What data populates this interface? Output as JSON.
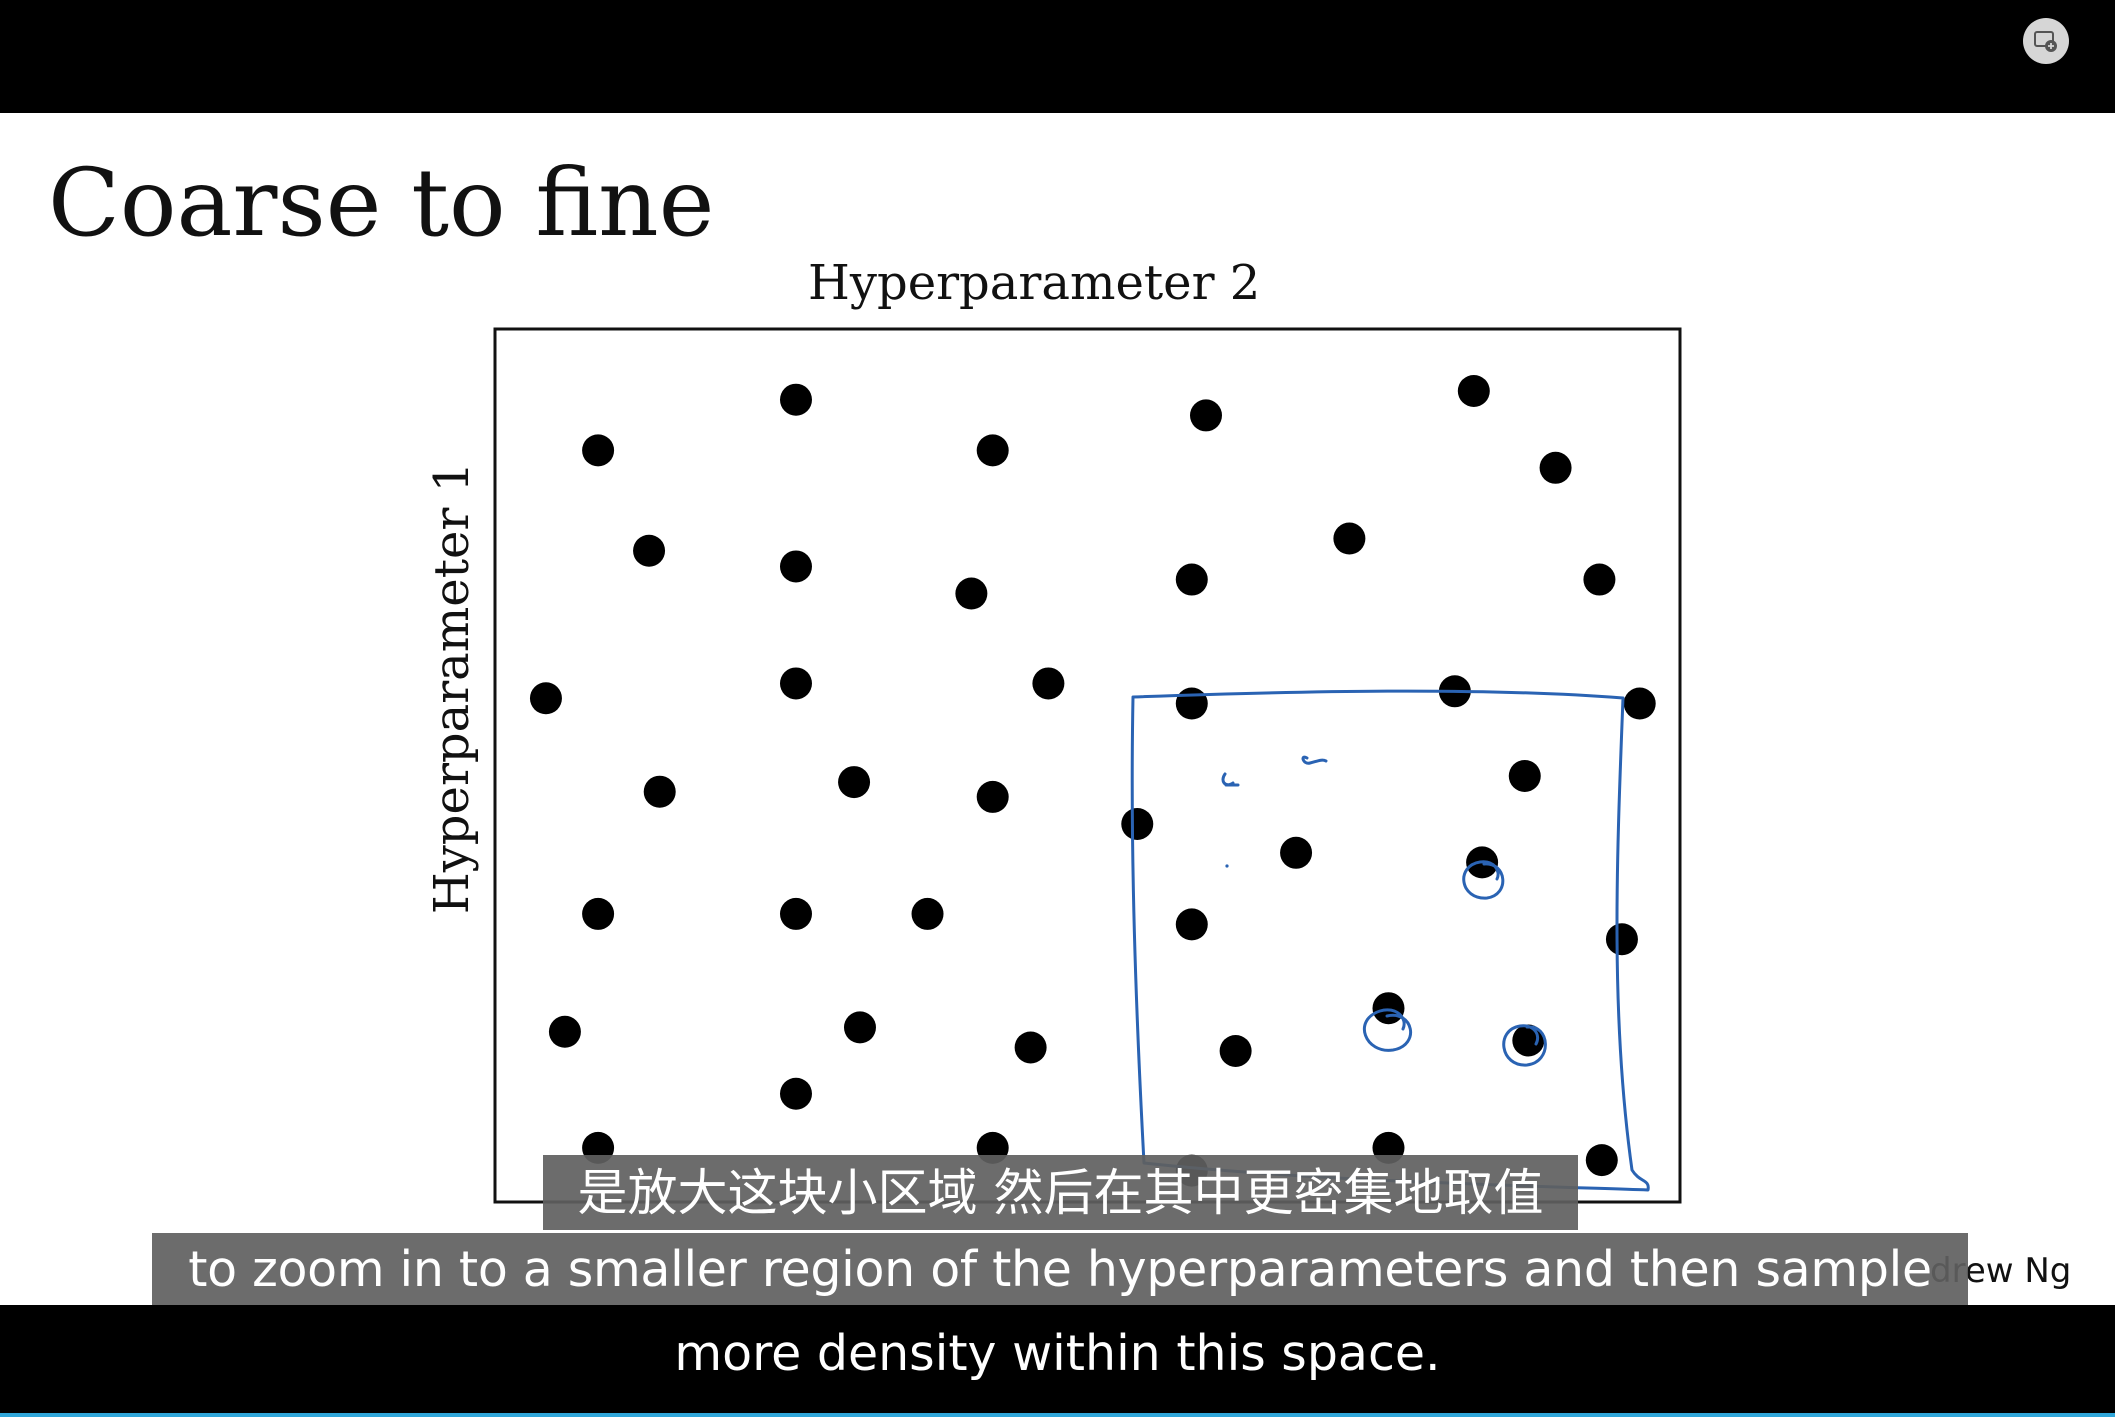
{
  "video": {
    "pip_button_icon": "picture-in-picture-icon"
  },
  "slide": {
    "title": "Coarse to fine",
    "author": "drew Ng"
  },
  "chart_data": {
    "type": "scatter",
    "xlabel": "Hyperparameter 2",
    "ylabel": "Hyperparameter 1",
    "xlim": [
      0,
      1
    ],
    "ylim": [
      0,
      1
    ],
    "grid": false,
    "points": [
      {
        "x": 0.087,
        "y": 0.861
      },
      {
        "x": 0.254,
        "y": 0.919
      },
      {
        "x": 0.42,
        "y": 0.861
      },
      {
        "x": 0.6,
        "y": 0.901
      },
      {
        "x": 0.826,
        "y": 0.929
      },
      {
        "x": 0.895,
        "y": 0.841
      },
      {
        "x": 0.13,
        "y": 0.746
      },
      {
        "x": 0.254,
        "y": 0.728
      },
      {
        "x": 0.402,
        "y": 0.697
      },
      {
        "x": 0.588,
        "y": 0.713
      },
      {
        "x": 0.721,
        "y": 0.76
      },
      {
        "x": 0.932,
        "y": 0.713
      },
      {
        "x": 0.043,
        "y": 0.577
      },
      {
        "x": 0.254,
        "y": 0.594
      },
      {
        "x": 0.467,
        "y": 0.594
      },
      {
        "x": 0.588,
        "y": 0.571
      },
      {
        "x": 0.81,
        "y": 0.585
      },
      {
        "x": 0.966,
        "y": 0.571
      },
      {
        "x": 0.139,
        "y": 0.47
      },
      {
        "x": 0.303,
        "y": 0.481
      },
      {
        "x": 0.42,
        "y": 0.464
      },
      {
        "x": 0.542,
        "y": 0.433
      },
      {
        "x": 0.676,
        "y": 0.4
      },
      {
        "x": 0.869,
        "y": 0.488
      },
      {
        "x": 0.833,
        "y": 0.389
      },
      {
        "x": 0.087,
        "y": 0.33
      },
      {
        "x": 0.254,
        "y": 0.33
      },
      {
        "x": 0.365,
        "y": 0.33
      },
      {
        "x": 0.588,
        "y": 0.318
      },
      {
        "x": 0.951,
        "y": 0.301
      },
      {
        "x": 0.059,
        "y": 0.195
      },
      {
        "x": 0.308,
        "y": 0.2
      },
      {
        "x": 0.452,
        "y": 0.177
      },
      {
        "x": 0.625,
        "y": 0.173
      },
      {
        "x": 0.754,
        "y": 0.222
      },
      {
        "x": 0.872,
        "y": 0.185
      },
      {
        "x": 0.254,
        "y": 0.124
      },
      {
        "x": 0.087,
        "y": 0.062
      },
      {
        "x": 0.42,
        "y": 0.062
      },
      {
        "x": 0.588,
        "y": 0.036
      },
      {
        "x": 0.754,
        "y": 0.062
      },
      {
        "x": 0.934,
        "y": 0.048
      }
    ]
  },
  "subtitles": {
    "chinese": "是放大这块小区域 然后在其中更密集地取值",
    "english_line1": "to zoom in to a smaller region of the hyperparameters and then sample",
    "english_line2": "more density within this space."
  },
  "colors": {
    "annotation": "#2a63b3",
    "progress": "#2fa6d9"
  }
}
